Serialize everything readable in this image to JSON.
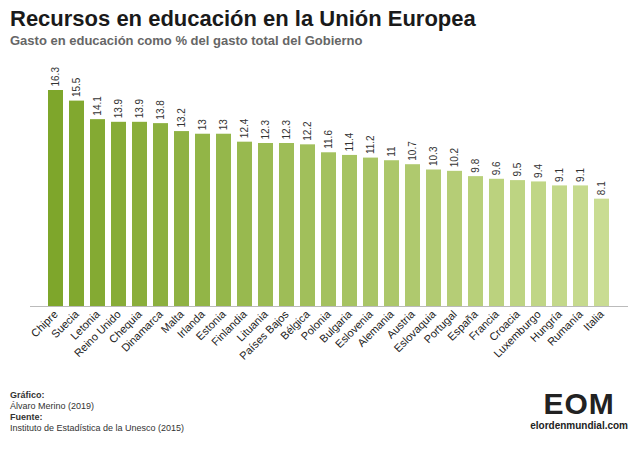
{
  "chart_data": {
    "type": "bar",
    "title": "Recursos en educación en la Unión Europea",
    "subtitle": "Gasto en educación como % del gasto total del Gobierno",
    "categories": [
      "Chipre",
      "Suecia",
      "Letonia",
      "Reino Unido",
      "Chequia",
      "Dinamarca",
      "Malta",
      "Irlanda",
      "Estonia",
      "Finlandia",
      "Lituania",
      "Países Bajos",
      "Bélgica",
      "Polonia",
      "Bulgaria",
      "Eslovenia",
      "Alemania",
      "Austria",
      "Eslovaquia",
      "Portugal",
      "España",
      "Francia",
      "Croacia",
      "Luxemburgo",
      "Hungría",
      "Rumanía",
      "Italia"
    ],
    "values": [
      16.3,
      15.5,
      14.1,
      13.9,
      13.9,
      13.8,
      13.2,
      13,
      13,
      12.4,
      12.3,
      12.3,
      12.2,
      11.6,
      11.4,
      11.2,
      11,
      10.7,
      10.3,
      10.2,
      9.8,
      9.6,
      9.5,
      9.4,
      9.1,
      9.1,
      8.1
    ],
    "colors": [
      "#7ea62b",
      "#81a82f",
      "#84aa33",
      "#87ac37",
      "#8aae3b",
      "#8cb03f",
      "#8fb243",
      "#92b547",
      "#95b74b",
      "#98b94f",
      "#9bbb53",
      "#9ebd57",
      "#a1bf5b",
      "#a4c15f",
      "#a6c362",
      "#a9c566",
      "#acc76a",
      "#afc96e",
      "#b2cb72",
      "#b5cd76",
      "#b8d07a",
      "#bbd27e",
      "#bdd482",
      "#c0d686",
      "#c3d88a",
      "#c6da8e",
      "#c9dc92"
    ],
    "ylim": [
      0,
      16.3
    ],
    "yticks": [],
    "tick_labels": "x",
    "data_labels": true,
    "grid": false,
    "footer": [
      {
        "label": "Gráfico:",
        "text": "Álvaro Merino (2019)"
      },
      {
        "label": "Fuente:",
        "text": "Instituto de Estadística de la Unesco (2015)"
      }
    ],
    "logo": {
      "text": "EOM",
      "url": "elordenmundial.com"
    }
  }
}
